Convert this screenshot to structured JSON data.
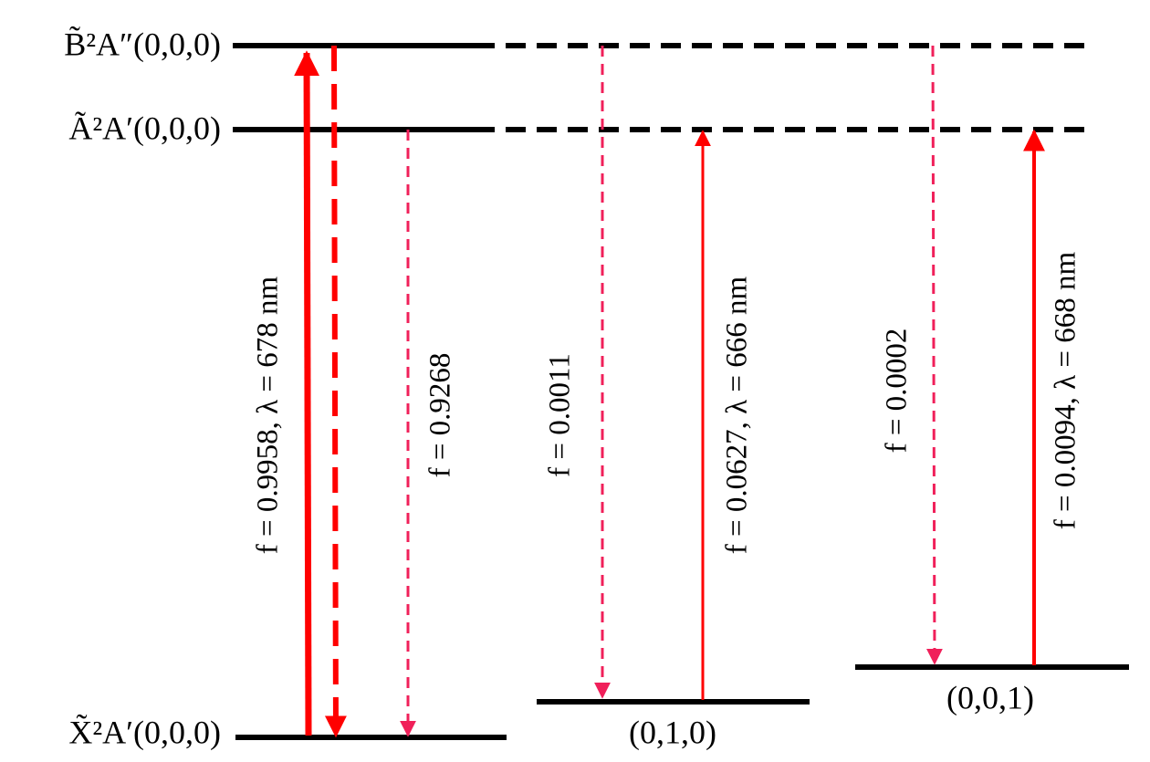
{
  "levels": [
    {
      "label": "B̃²A″(0,0,0)"
    },
    {
      "label": "Ã²A′(0,0,0)"
    },
    {
      "label": "X̃²A′(0,0,0)"
    },
    {
      "label": "(0,1,0)"
    },
    {
      "label": "(0,0,1)"
    }
  ],
  "transitions": [
    {
      "label": "f = 0.9958, λ = 678 nm"
    },
    {
      "label": "f = 0.9268"
    },
    {
      "label": "f = 0.0011"
    },
    {
      "label": "f = 0.0627, λ = 666 nm"
    },
    {
      "label": "f = 0.0002"
    },
    {
      "label": "f = 0.0094, λ = 668 nm"
    }
  ]
}
